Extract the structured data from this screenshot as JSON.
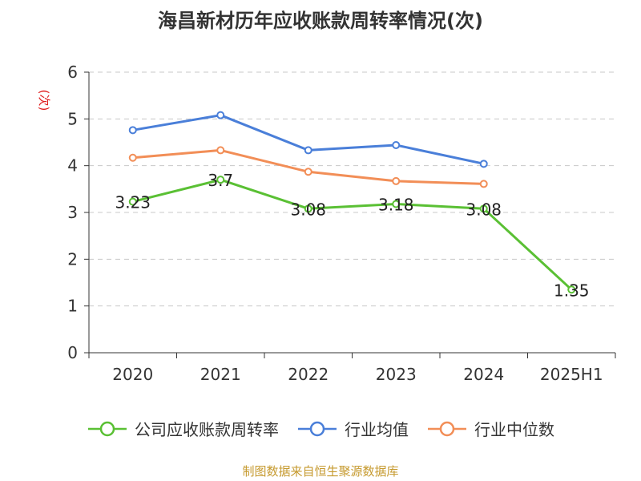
{
  "title": "海昌新材历年应收账款周转率情况(次)",
  "source": "制图数据来自恒生聚源数据库",
  "chart_data": {
    "type": "line",
    "title": "海昌新材历年应收账款周转率情况(次)",
    "ylabel": "(次)",
    "xlabel": "",
    "categories": [
      "2020",
      "2021",
      "2022",
      "2023",
      "2024",
      "2025H1"
    ],
    "yticks": [
      "0",
      "1",
      "2",
      "3",
      "4",
      "5",
      "6"
    ],
    "ylim": [
      0,
      6
    ],
    "grid": true,
    "legend_position": "bottom",
    "series": [
      {
        "name": "公司应收账款周转率",
        "color": "#5ac034",
        "values": [
          3.23,
          3.7,
          3.08,
          3.18,
          3.08,
          1.35
        ],
        "labels": [
          "3.23",
          "3.7",
          "3.08",
          "3.18",
          "3.08",
          "1.35"
        ]
      },
      {
        "name": "行业均值",
        "color": "#4a7fd9",
        "values": [
          4.76,
          5.08,
          4.33,
          4.44,
          4.04,
          null
        ]
      },
      {
        "name": "行业中位数",
        "color": "#f28e57",
        "values": [
          4.17,
          4.33,
          3.87,
          3.67,
          3.61,
          null
        ]
      }
    ]
  }
}
